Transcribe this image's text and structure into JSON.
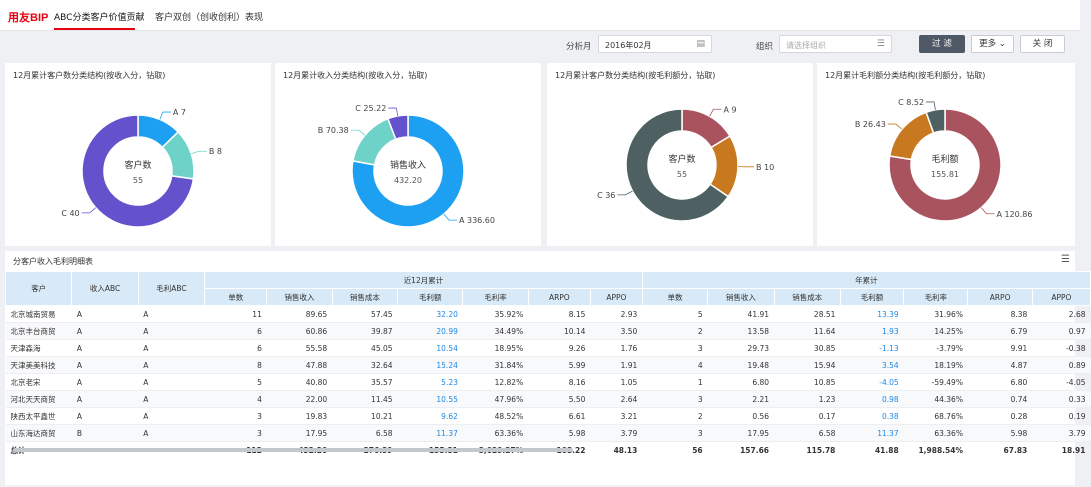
{
  "app": {
    "logo": "用友BIP",
    "tabs": [
      "ABC分类客户价值贡献",
      "客户双创（创收创利）表现"
    ]
  },
  "filters": {
    "month_label": "分析月",
    "month_value": "2016年02月",
    "org_label": "组织",
    "org_placeholder": "请选择组织",
    "filter_btn": "过 滤",
    "more_btn": "更多",
    "close_btn": "关 闭"
  },
  "cards": [
    {
      "title": "12月累计客户数分类结构(按收入分，钻取)",
      "center_label": "客户数",
      "center_value": "55",
      "segments": [
        {
          "name": "A",
          "value": 7,
          "label": "A 7",
          "color": "#1ea0f2"
        },
        {
          "name": "B",
          "value": 8,
          "label": "B 8",
          "color": "#6fd2c8"
        },
        {
          "name": "C",
          "value": 40,
          "label": "C 40",
          "color": "#6352cc"
        }
      ]
    },
    {
      "title": "12月累计收入分类结构(按收入分，钻取)",
      "center_label": "销售收入",
      "center_value": "432.20",
      "segments": [
        {
          "name": "A",
          "value": 336.6,
          "label": "A 336.60",
          "color": "#1ea0f2"
        },
        {
          "name": "B",
          "value": 70.38,
          "label": "B 70.38",
          "color": "#6fd2c8"
        },
        {
          "name": "C",
          "value": 25.22,
          "label": "C 25.22",
          "color": "#6352cc"
        }
      ]
    },
    {
      "title": "12月累计客户数分类结构(按毛利额分，钻取)",
      "center_label": "客户数",
      "center_value": "55",
      "segments": [
        {
          "name": "A",
          "value": 9,
          "label": "A 9",
          "color": "#a9535f"
        },
        {
          "name": "B",
          "value": 10,
          "label": "B 10",
          "color": "#c8781f"
        },
        {
          "name": "C",
          "value": 36,
          "label": "C 36",
          "color": "#4e6062"
        }
      ]
    },
    {
      "title": "12月累计毛利额分类结构(按毛利额分，钻取)",
      "center_label": "毛利额",
      "center_value": "155.81",
      "segments": [
        {
          "name": "A",
          "value": 120.86,
          "label": "A 120.86",
          "color": "#a9535f"
        },
        {
          "name": "B",
          "value": 26.43,
          "label": "B 26.43",
          "color": "#c8781f"
        },
        {
          "name": "C",
          "value": 8.52,
          "label": "C 8.52",
          "color": "#4e6062"
        }
      ]
    }
  ],
  "table": {
    "title": "分客户收入毛利明细表",
    "group_headers": {
      "customer": "客户",
      "rev_abc": "收入ABC",
      "gp_abc": "毛利ABC",
      "last12": "近12月累计",
      "ytd": "年累计"
    },
    "sub_headers": [
      "单数",
      "销售收入",
      "销售成本",
      "毛利额",
      "毛利率",
      "ARPO",
      "APPO"
    ],
    "rows": [
      [
        "北京城南贸易",
        "A",
        "A",
        "11",
        "89.65",
        "57.45",
        "32.20",
        "35.92%",
        "8.15",
        "2.93",
        "5",
        "41.91",
        "28.51",
        "13.39",
        "31.96%",
        "8.38",
        "2.68"
      ],
      [
        "北京丰台商贸",
        "A",
        "A",
        "6",
        "60.86",
        "39.87",
        "20.99",
        "34.49%",
        "10.14",
        "3.50",
        "2",
        "13.58",
        "11.64",
        "1.93",
        "14.25%",
        "6.79",
        "0.97"
      ],
      [
        "天津森海",
        "A",
        "A",
        "6",
        "55.58",
        "45.05",
        "10.54",
        "18.95%",
        "9.26",
        "1.76",
        "3",
        "29.73",
        "30.85",
        "-1.13",
        "-3.79%",
        "9.91",
        "-0.38"
      ],
      [
        "天津美美科技",
        "A",
        "A",
        "8",
        "47.88",
        "32.64",
        "15.24",
        "31.84%",
        "5.99",
        "1.91",
        "4",
        "19.48",
        "15.94",
        "3.54",
        "18.19%",
        "4.87",
        "0.89"
      ],
      [
        "北京老宋",
        "A",
        "A",
        "5",
        "40.80",
        "35.57",
        "5.23",
        "12.82%",
        "8.16",
        "1.05",
        "1",
        "6.80",
        "10.85",
        "-4.05",
        "-59.49%",
        "6.80",
        "-4.05"
      ],
      [
        "河北天天商贸",
        "A",
        "A",
        "4",
        "22.00",
        "11.45",
        "10.55",
        "47.96%",
        "5.50",
        "2.64",
        "3",
        "2.21",
        "1.23",
        "0.98",
        "44.36%",
        "0.74",
        "0.33"
      ],
      [
        "陕西太平鑫世",
        "A",
        "A",
        "3",
        "19.83",
        "10.21",
        "9.62",
        "48.52%",
        "6.61",
        "3.21",
        "2",
        "0.56",
        "0.17",
        "0.38",
        "68.76%",
        "0.28",
        "0.19"
      ],
      [
        "山东海达商贸",
        "B",
        "A",
        "3",
        "17.95",
        "6.58",
        "11.37",
        "63.36%",
        "5.98",
        "3.79",
        "3",
        "17.95",
        "6.58",
        "11.37",
        "63.36%",
        "5.98",
        "3.79"
      ]
    ],
    "total": [
      "总计",
      "",
      "",
      "112",
      "432.20",
      "276.39",
      "155.81",
      "3,029.27%",
      "108.22",
      "48.13",
      "56",
      "157.66",
      "115.78",
      "41.88",
      "1,988.54%",
      "67.83",
      "18.91"
    ]
  }
}
